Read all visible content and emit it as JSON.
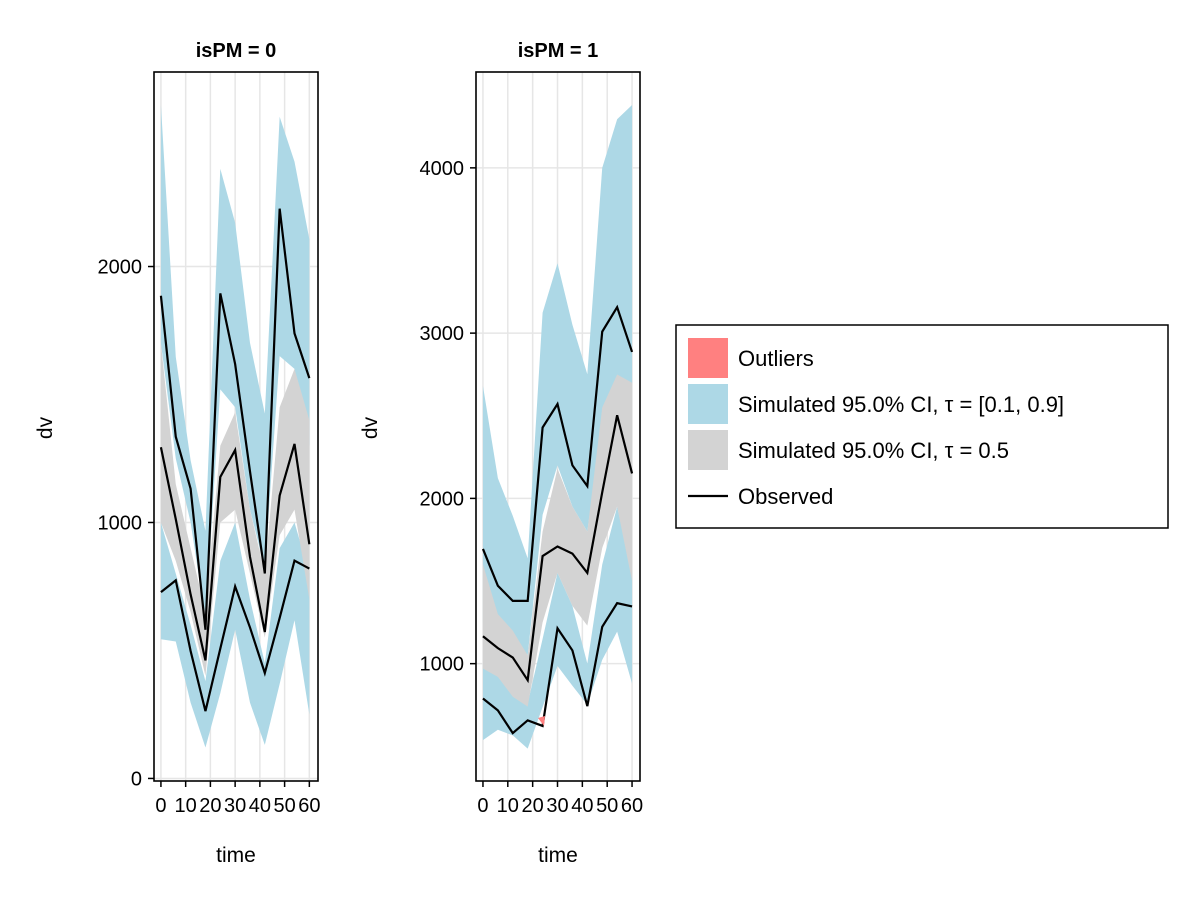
{
  "chart_data": {
    "type": "area",
    "colors": {
      "outliers": "#ff8080",
      "ci_outer": "#add8e6",
      "ci_median": "#d3d3d3",
      "observed": "#000000",
      "grid": "#e6e6e6"
    },
    "legend": {
      "placement": "right",
      "entries": [
        {
          "label": "Outliers",
          "kind": "outliers"
        },
        {
          "label": "Simulated 95.0% CI, τ = [0.1, 0.9]",
          "kind": "ci_outer"
        },
        {
          "label": "Simulated 95.0% CI, τ = 0.5",
          "kind": "ci_median"
        },
        {
          "label": "Observed",
          "kind": "observed"
        }
      ]
    },
    "x": [
      0,
      6,
      12,
      18,
      24,
      30,
      36,
      42,
      48,
      54,
      60
    ],
    "panels": [
      {
        "title": "isPM = 0",
        "xlabel": "time",
        "ylabel": "dv",
        "xlim": [
          -2.8,
          63.5
        ],
        "ylim": [
          -10,
          2760
        ],
        "xticks": [
          0,
          10,
          20,
          30,
          40,
          50,
          60
        ],
        "xtick_labels": [
          "0",
          "10",
          "20",
          "30",
          "40",
          "50",
          "60"
        ],
        "yticks": [
          0,
          1000,
          2000
        ],
        "ytick_labels": [
          "0",
          "1000",
          "2000"
        ],
        "band_q90": {
          "lo": [
            1700,
            1250,
            1000,
            620,
            1520,
            1450,
            1050,
            820,
            1650,
            1600,
            1300
          ],
          "hi": [
            2631,
            1647,
            1243,
            967,
            2382,
            2171,
            1702,
            1426,
            2585,
            2410,
            2107
          ]
        },
        "band_q50": {
          "lo": [
            1000,
            850,
            650,
            400,
            1000,
            1050,
            800,
            550,
            950,
            1050,
            700
          ],
          "hi": [
            1700,
            1150,
            900,
            650,
            1300,
            1430,
            1050,
            800,
            1450,
            1600,
            1400
          ]
        },
        "band_q10": {
          "lo": [
            544,
            535,
            296,
            121,
            333,
            581,
            296,
            131,
            369,
            618,
            250
          ],
          "hi": [
            1000,
            800,
            600,
            380,
            850,
            1000,
            700,
            450,
            900,
            1000,
            800
          ]
        },
        "observed_q90": [
          1886,
          1335,
          1132,
          581,
          1895,
          1619,
          1200,
          801,
          2226,
          1739,
          1564
        ],
        "observed_q50": [
          1294,
          1013,
          719,
          461,
          1178,
          1283,
          866,
          572,
          1105,
          1307,
          915
        ],
        "observed_q10": [
          728,
          774,
          498,
          263,
          507,
          750,
          590,
          412,
          627,
          851,
          820
        ]
      },
      {
        "title": "isPM = 1",
        "xlabel": "time",
        "ylabel": "dv",
        "xlim": [
          -2.8,
          63.2
        ],
        "ylim": [
          290,
          4580
        ],
        "xticks": [
          0,
          10,
          20,
          30,
          40,
          50,
          60
        ],
        "xtick_labels": [
          "0",
          "10",
          "20",
          "30",
          "40",
          "50",
          "60"
        ],
        "yticks": [
          1000,
          2000,
          3000,
          4000
        ],
        "ytick_labels": [
          "1000",
          "2000",
          "3000",
          "4000"
        ],
        "band_q90": {
          "lo": [
            1250,
            1250,
            1150,
            1050,
            1900,
            2200,
            1950,
            1800,
            2450,
            2600,
            2700
          ],
          "hi": [
            2680,
            2123,
            1894,
            1637,
            3123,
            3423,
            3051,
            2751,
            4000,
            4294,
            4380
          ]
        },
        "band_q50": {
          "lo": [
            970,
            920,
            800,
            740,
            1250,
            1550,
            1350,
            1230,
            1700,
            1950,
            1500
          ],
          "hi": [
            1600,
            1300,
            1200,
            1050,
            1800,
            2180,
            1950,
            1800,
            2550,
            2750,
            2700
          ]
        },
        "band_q10": {
          "lo": [
            537,
            600,
            566,
            486,
            737,
            986,
            866,
            751,
            1023,
            1194,
            880
          ],
          "hi": [
            1000,
            950,
            850,
            760,
            1150,
            1550,
            1350,
            1000,
            1600,
            1950,
            1550
          ]
        },
        "observed_q90": [
          1694,
          1471,
          1380,
          1380,
          2429,
          2571,
          2200,
          2074,
          3009,
          3157,
          2886
        ],
        "observed_q50": [
          1166,
          1094,
          1037,
          900,
          1651,
          1709,
          1666,
          1549,
          2037,
          2503,
          2151
        ],
        "observed_q10": [
          789,
          717,
          580,
          657,
          623,
          1214,
          1080,
          743,
          1223,
          1366,
          1346
        ]
      }
    ]
  }
}
